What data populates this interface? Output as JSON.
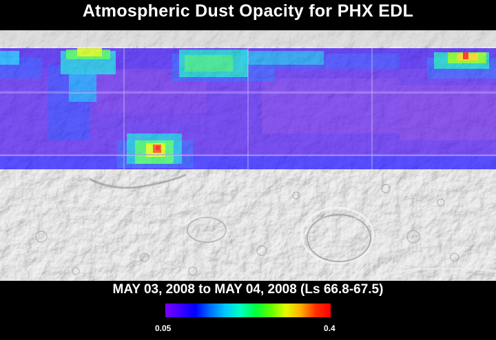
{
  "title": "Atmospheric Dust Opacity for PHX EDL",
  "subtitle": "MAY 03, 2008 to MAY 04, 2008 (Ls 66.8-67.5)",
  "colorbar": {
    "min_label": "0.05",
    "max_label": "0.4",
    "min": 0.05,
    "max": 0.4,
    "colors": [
      "#7a00ff",
      "#3f00ff",
      "#0000ff",
      "#0070ff",
      "#00c8ff",
      "#00ffc0",
      "#00ff40",
      "#60ff00",
      "#e0ff00",
      "#ffb000",
      "#ff3000",
      "#ff0000"
    ]
  },
  "map": {
    "basemap": "grayscale shaded-relief Mars surface",
    "overlay": "dust opacity colored data band",
    "grid": true
  }
}
